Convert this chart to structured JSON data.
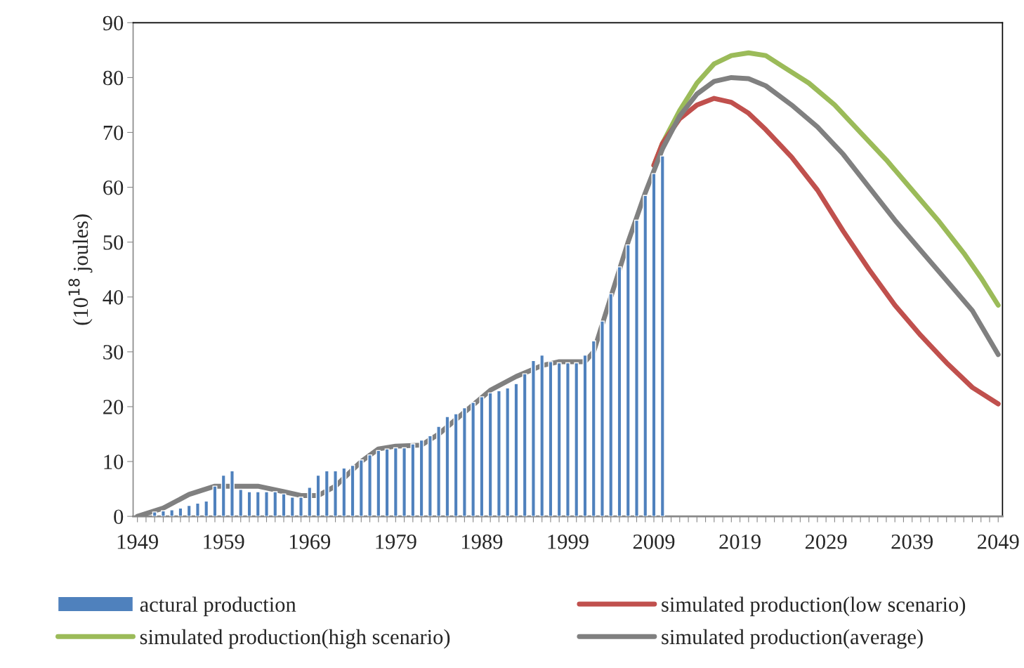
{
  "chart_data": {
    "type": "bar",
    "ylabel": "(10$^{18}$ joules)",
    "xlim": [
      1948.5,
      2049.5
    ],
    "ylim": [
      0,
      90
    ],
    "yticks": [
      0,
      10,
      20,
      30,
      40,
      50,
      60,
      70,
      80,
      90
    ],
    "xticks": [
      1949,
      {
        "value": 1950,
        "label": null
      },
      {
        "value": 1951,
        "label": null
      },
      {
        "value": 1952,
        "label": null
      },
      {
        "value": 1953,
        "label": null
      },
      {
        "value": 1954,
        "label": null
      },
      {
        "value": 1955,
        "label": null
      },
      {
        "value": 1956,
        "label": null
      },
      {
        "value": 1957,
        "label": null
      },
      {
        "value": 1958,
        "label": null
      },
      1959,
      {
        "value": 1960,
        "label": null
      },
      {
        "value": 1961,
        "label": null
      },
      {
        "value": 1962,
        "label": null
      },
      {
        "value": 1963,
        "label": null
      },
      {
        "value": 1964,
        "label": null
      },
      {
        "value": 1965,
        "label": null
      },
      {
        "value": 1966,
        "label": null
      },
      {
        "value": 1967,
        "label": null
      },
      {
        "value": 1968,
        "label": null
      },
      1969,
      {
        "value": 1970,
        "label": null
      },
      {
        "value": 1971,
        "label": null
      },
      {
        "value": 1972,
        "label": null
      },
      {
        "value": 1973,
        "label": null
      },
      {
        "value": 1974,
        "label": null
      },
      {
        "value": 1975,
        "label": null
      },
      {
        "value": 1976,
        "label": null
      },
      {
        "value": 1977,
        "label": null
      },
      {
        "value": 1978,
        "label": null
      },
      1979,
      {
        "value": 1980,
        "label": null
      },
      {
        "value": 1981,
        "label": null
      },
      {
        "value": 1982,
        "label": null
      },
      {
        "value": 1983,
        "label": null
      },
      {
        "value": 1984,
        "label": null
      },
      {
        "value": 1985,
        "label": null
      },
      {
        "value": 1986,
        "label": null
      },
      {
        "value": 1987,
        "label": null
      },
      {
        "value": 1988,
        "label": null
      },
      1989,
      {
        "value": 1990,
        "label": null
      },
      {
        "value": 1991,
        "label": null
      },
      {
        "value": 1992,
        "label": null
      },
      {
        "value": 1993,
        "label": null
      },
      {
        "value": 1994,
        "label": null
      },
      {
        "value": 1995,
        "label": null
      },
      {
        "value": 1996,
        "label": null
      },
      {
        "value": 1997,
        "label": null
      },
      {
        "value": 1998,
        "label": null
      },
      1999,
      {
        "value": 2000,
        "label": null
      },
      {
        "value": 2001,
        "label": null
      },
      {
        "value": 2002,
        "label": null
      },
      {
        "value": 2003,
        "label": null
      },
      {
        "value": 2004,
        "label": null
      },
      {
        "value": 2005,
        "label": null
      },
      {
        "value": 2006,
        "label": null
      },
      {
        "value": 2007,
        "label": null
      },
      {
        "value": 2008,
        "label": null
      },
      2009,
      {
        "value": 2010,
        "label": null
      },
      {
        "value": 2011,
        "label": null
      },
      {
        "value": 2012,
        "label": null
      },
      {
        "value": 2013,
        "label": null
      },
      {
        "value": 2014,
        "label": null
      },
      {
        "value": 2015,
        "label": null
      },
      {
        "value": 2016,
        "label": null
      },
      {
        "value": 2017,
        "label": null
      },
      {
        "value": 2018,
        "label": null
      },
      2019,
      {
        "value": 2020,
        "label": null
      },
      {
        "value": 2021,
        "label": null
      },
      {
        "value": 2022,
        "label": null
      },
      {
        "value": 2023,
        "label": null
      },
      {
        "value": 2024,
        "label": null
      },
      {
        "value": 2025,
        "label": null
      },
      {
        "value": 2026,
        "label": null
      },
      {
        "value": 2027,
        "label": null
      },
      {
        "value": 2028,
        "label": null
      },
      2029,
      {
        "value": 2030,
        "label": null
      },
      {
        "value": 2031,
        "label": null
      },
      {
        "value": 2032,
        "label": null
      },
      {
        "value": 2033,
        "label": null
      },
      {
        "value": 2034,
        "label": null
      },
      {
        "value": 2035,
        "label": null
      },
      {
        "value": 2036,
        "label": null
      },
      {
        "value": 2037,
        "label": null
      },
      {
        "value": 2038,
        "label": null
      },
      2039,
      {
        "value": 2040,
        "label": null
      },
      {
        "value": 2041,
        "label": null
      },
      {
        "value": 2042,
        "label": null
      },
      {
        "value": 2043,
        "label": null
      },
      {
        "value": 2044,
        "label": null
      },
      {
        "value": 2045,
        "label": null
      },
      {
        "value": 2046,
        "label": null
      },
      {
        "value": 2047,
        "label": null
      },
      {
        "value": 2048,
        "label": null
      },
      2049
    ],
    "grid": false,
    "legend": "bottom",
    "marker": "none",
    "line_style": "solid",
    "series": [
      {
        "name": "actural production",
        "type": "bar",
        "color": "#4f81bd",
        "x": [
          1951,
          1952,
          1953,
          1954,
          1955,
          1956,
          1957,
          1958,
          1959,
          1960,
          1961,
          1962,
          1963,
          1964,
          1965,
          1966,
          1967,
          1968,
          1969,
          1970,
          1971,
          1972,
          1973,
          1974,
          1975,
          1976,
          1977,
          1978,
          1979,
          1980,
          1981,
          1982,
          1983,
          1984,
          1985,
          1986,
          1987,
          1988,
          1989,
          1990,
          1991,
          1992,
          1993,
          1994,
          1995,
          1996,
          1997,
          1998,
          1999,
          2000,
          2001,
          2002,
          2003,
          2004,
          2005,
          2006,
          2007,
          2008,
          2009,
          2010
        ],
        "values": [
          0.8,
          1.0,
          1.2,
          1.5,
          2.0,
          2.4,
          2.8,
          5.5,
          7.5,
          8.3,
          4.9,
          4.5,
          4.5,
          4.5,
          4.5,
          4.1,
          3.5,
          3.5,
          5.3,
          7.5,
          8.3,
          8.3,
          8.8,
          9.3,
          10.3,
          11.2,
          12.0,
          12.3,
          12.5,
          12.5,
          13.2,
          13.9,
          14.7,
          16.4,
          18.2,
          18.7,
          19.8,
          20.8,
          21.8,
          22.5,
          22.9,
          23.4,
          24.2,
          26.0,
          28.4,
          29.4,
          28.2,
          28,
          28,
          28,
          29.4,
          32,
          35.6,
          40.6,
          45.5,
          49.5,
          54,
          58.5,
          62.5,
          65.7
        ]
      },
      {
        "name": "simulated production(high scenario)",
        "type": "line",
        "color": "#9bbb59",
        "x": [
          2009,
          2010,
          2012,
          2014,
          2016,
          2018,
          2020,
          2022,
          2024,
          2027,
          2030,
          2033,
          2036,
          2039,
          2042,
          2045,
          2047,
          2049
        ],
        "values": [
          64,
          68,
          74,
          79,
          82.5,
          84,
          84.5,
          84,
          82,
          79,
          75,
          70,
          65,
          59.5,
          54,
          48,
          43.5,
          38.5
        ]
      },
      {
        "name": "simulated production(low scenario)",
        "type": "line",
        "color": "#c0504d",
        "x": [
          2009,
          2010,
          2012,
          2014,
          2016,
          2018,
          2020,
          2022,
          2025,
          2028,
          2031,
          2034,
          2037,
          2040,
          2043,
          2046,
          2049
        ],
        "values": [
          64,
          68,
          72.5,
          75,
          76.2,
          75.5,
          73.5,
          70.5,
          65.5,
          59.5,
          52,
          45,
          38.5,
          33,
          28,
          23.5,
          20.5
        ]
      },
      {
        "name": "simulated production(average)",
        "type": "line",
        "color": "#808080",
        "x": [
          1949,
          1952,
          1955,
          1958,
          1963,
          1966,
          1968,
          1970,
          1972,
          1975,
          1977,
          1979,
          1982,
          1984,
          1987,
          1990,
          1993,
          1996,
          1998,
          2001,
          2002,
          2004,
          2006,
          2008,
          2010,
          2012,
          2014,
          2016,
          2018,
          2020,
          2022,
          2025,
          2028,
          2031,
          2034,
          2037,
          2040,
          2043,
          2046,
          2049
        ],
        "values": [
          0,
          1.5,
          4,
          5.5,
          5.5,
          4.5,
          3.8,
          3.8,
          5.5,
          10,
          12.3,
          12.8,
          13,
          15,
          19,
          23,
          25.5,
          27.5,
          28.2,
          28.2,
          30,
          40,
          50,
          59,
          67,
          73,
          77,
          79.3,
          80,
          79.8,
          78.5,
          75,
          71,
          66,
          60,
          54,
          48.5,
          43,
          37.5,
          29.5
        ]
      }
    ]
  }
}
